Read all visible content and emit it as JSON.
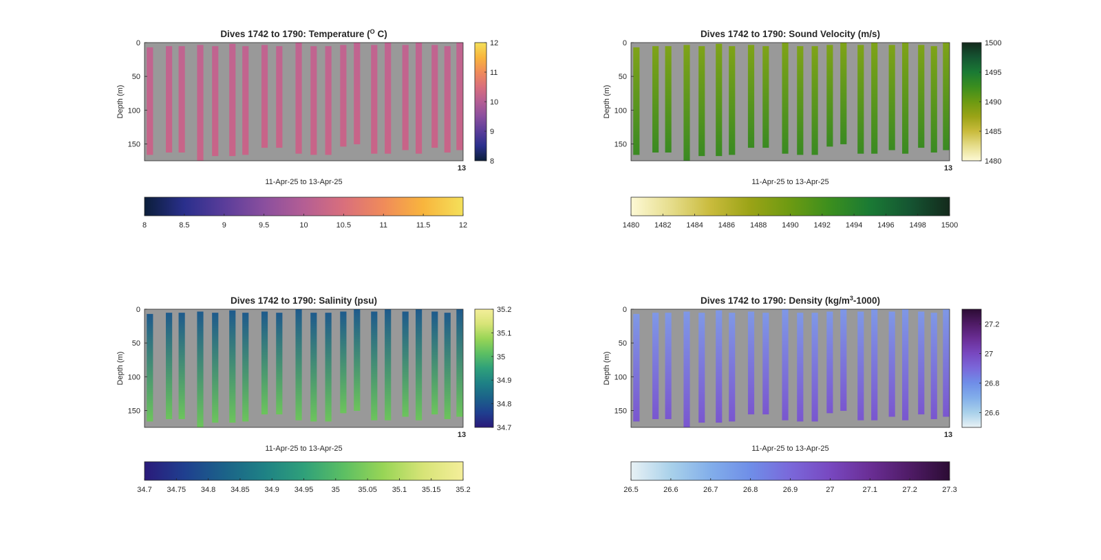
{
  "chart_data": [
    {
      "type": "heatmap",
      "title": "Dives 1742 to 1790: Temperature (",
      "title_sup": "O",
      "title_end": " C)",
      "xlabel": "11-Apr-25 to 13-Apr-25",
      "ylabel": "Depth (m)",
      "ylim": [
        175,
        0
      ],
      "yticks": [
        "0",
        "50",
        "100",
        "150"
      ],
      "xtick_end": "13",
      "clim": [
        8,
        12
      ],
      "colormap": [
        "#0b1e3a",
        "#2a2f8c",
        "#5a3d9a",
        "#8a4f9e",
        "#b45e94",
        "#d96f7c",
        "#f08b5a",
        "#f8b53d",
        "#f4e05a"
      ],
      "profile_color_top": "#c06490",
      "profile_color_bottom": "#c86488",
      "right_ticks": [
        "8",
        "9",
        "10",
        "11",
        "12"
      ],
      "bottom_ticks": [
        "8",
        "8.5",
        "9",
        "9.5",
        "10",
        "10.5",
        "11",
        "11.5",
        "12"
      ]
    },
    {
      "type": "heatmap",
      "title": "Dives 1742 to 1790: Sound Velocity (m/s)",
      "title_sup": "",
      "title_end": "",
      "xlabel": "11-Apr-25 to 13-Apr-25",
      "ylabel": "Depth (m)",
      "ylim": [
        175,
        0
      ],
      "yticks": [
        "0",
        "50",
        "100",
        "150"
      ],
      "xtick_end": "13",
      "clim": [
        1480,
        1500
      ],
      "colormap": [
        "#fdf9d5",
        "#e6dd8c",
        "#c9bb3c",
        "#9aa316",
        "#6c9a12",
        "#3b8e1e",
        "#1a7a34",
        "#155532",
        "#142a1c"
      ],
      "profile_color_top": "#7fa318",
      "profile_color_bottom": "#3a8a22",
      "right_ticks": [
        "1480",
        "1485",
        "1490",
        "1495",
        "1500"
      ],
      "bottom_ticks": [
        "1480",
        "1482",
        "1484",
        "1486",
        "1488",
        "1490",
        "1492",
        "1494",
        "1496",
        "1498",
        "1500"
      ]
    },
    {
      "type": "heatmap",
      "title": "Dives 1742 to 1790: Salinity (psu)",
      "title_sup": "",
      "title_end": "",
      "xlabel": "11-Apr-25 to 13-Apr-25",
      "ylabel": "Depth (m)",
      "ylim": [
        175,
        0
      ],
      "yticks": [
        "0",
        "50",
        "100",
        "150"
      ],
      "xtick_end": "13",
      "clim": [
        34.7,
        35.2
      ],
      "colormap": [
        "#2a1a7a",
        "#1f3f8f",
        "#1b6289",
        "#1e8185",
        "#2fa07a",
        "#5cbf63",
        "#98d556",
        "#d7e477",
        "#f4ee9a"
      ],
      "profile_color_top": "#1e5a8c",
      "profile_color_bottom": "#6cc45c",
      "right_ticks": [
        "34.7",
        "34.8",
        "34.9",
        "35",
        "35.1",
        "35.2"
      ],
      "bottom_ticks": [
        "34.7",
        "34.75",
        "34.8",
        "34.85",
        "34.9",
        "34.95",
        "35",
        "35.05",
        "35.1",
        "35.15",
        "35.2"
      ]
    },
    {
      "type": "heatmap",
      "title": "Dives 1742 to 1790: Density (kg/m",
      "title_sup": "3",
      "title_end": "-1000)",
      "xlabel": "11-Apr-25 to 13-Apr-25",
      "ylabel": "Depth (m)",
      "ylim": [
        175,
        0
      ],
      "yticks": [
        "0",
        "50",
        "100",
        "150"
      ],
      "xtick_end": "13",
      "clim": [
        26.5,
        27.3
      ],
      "colormap": [
        "#e8f1f5",
        "#a9d1ea",
        "#82aeea",
        "#6f8ee8",
        "#7a68da",
        "#7848c0",
        "#6a2e95",
        "#4f1b66",
        "#2c0c34"
      ],
      "profile_color_top": "#7f98e6",
      "profile_color_bottom": "#7a56cf",
      "right_ticks": [
        "26.6",
        "26.8",
        "27",
        "27.2"
      ],
      "bottom_ticks": [
        "26.5",
        "26.6",
        "26.7",
        "26.8",
        "26.9",
        "27",
        "27.1",
        "27.2",
        "27.3"
      ]
    }
  ]
}
